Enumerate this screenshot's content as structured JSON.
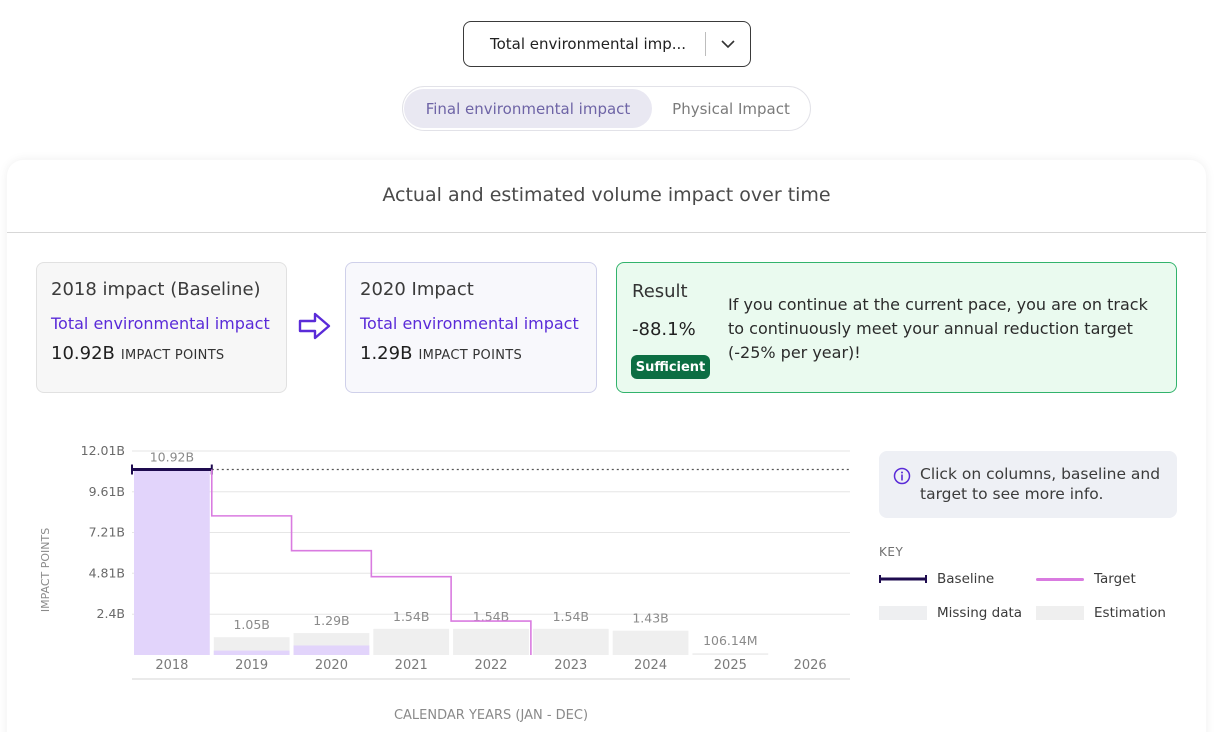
{
  "selector": {
    "value": "Total environmental imp..."
  },
  "toggle": {
    "active": "Final environmental impact",
    "inactive": "Physical Impact"
  },
  "card": {
    "title": "Actual and estimated volume impact over time"
  },
  "baseline_box": {
    "heading": "2018 impact (Baseline)",
    "sub": "Total environmental impact",
    "value": "10.92B",
    "unit": "IMPACT POINTS"
  },
  "current_box": {
    "heading": "2020 Impact",
    "sub": "Total environmental impact",
    "value": "1.29B",
    "unit": "IMPACT POINTS"
  },
  "result": {
    "label": "Result",
    "value": "-88.1%",
    "badge": "Sufficient",
    "text": "If you continue at the current pace, you are on track to continuously meet your annual reduction target (-25% per year)!"
  },
  "info": {
    "text": "Click on columns, baseline and target to see more info."
  },
  "key": {
    "title": "KEY",
    "baseline": "Baseline",
    "target": "Target",
    "missing": "Missing data",
    "estimation": "Estimation"
  },
  "colors": {
    "actual_bar": "#e2d4fb",
    "estimation_bar": "#efefef",
    "baseline_line": "#1e0b4f",
    "target_line": "#d97be0",
    "accent_purple": "#5a2bd8",
    "success_green": "#0c6e43"
  },
  "chart_data": {
    "type": "bar",
    "title": "",
    "xlabel": "CALENDAR YEARS (JAN - DEC)",
    "ylabel": "IMPACT POINTS",
    "ylim": [
      0,
      12.01
    ],
    "y_ticks": [
      "12.01B",
      "9.61B",
      "7.21B",
      "4.81B",
      "2.4B"
    ],
    "y_tick_values": [
      12.01,
      9.61,
      7.21,
      4.81,
      2.4
    ],
    "categories": [
      "2018",
      "2019",
      "2020",
      "2021",
      "2022",
      "2023",
      "2024",
      "2025",
      "2026"
    ],
    "series": [
      {
        "name": "Actual",
        "values": [
          10.92,
          0.26,
          0.56,
          null,
          null,
          null,
          null,
          null,
          null
        ]
      },
      {
        "name": "Estimation",
        "values": [
          null,
          1.05,
          1.29,
          1.54,
          1.54,
          1.54,
          1.43,
          0.10614,
          null
        ]
      }
    ],
    "data_labels": [
      "10.92B",
      "1.05B",
      "1.29B",
      "1.54B",
      "1.54B",
      "1.54B",
      "1.43B",
      "106.14M",
      ""
    ],
    "baseline": 10.92,
    "target": [
      {
        "from": "2018",
        "value": 10.92
      },
      {
        "from": "2019",
        "value": 8.19
      },
      {
        "from": "2020",
        "value": 6.14
      },
      {
        "from": "2021",
        "value": 4.61
      },
      {
        "from": "2022",
        "value": 2.0
      }
    ],
    "legend": "right",
    "grid": true
  }
}
